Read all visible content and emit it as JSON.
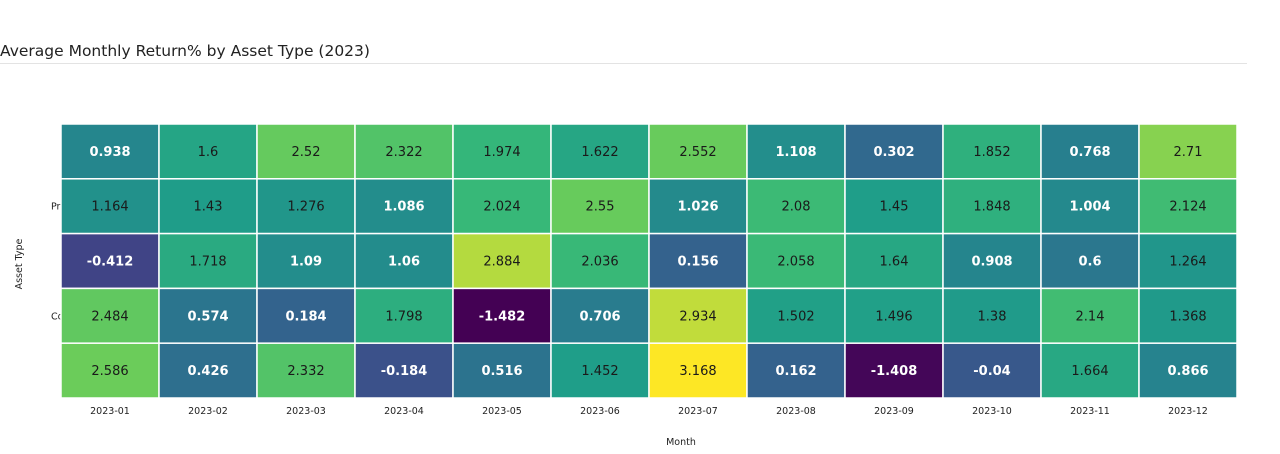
{
  "chart_data": {
    "type": "heatmap",
    "title": "Average Monthly Return% by Asset Type (2023)",
    "xlabel": "Month",
    "ylabel": "Asset Type",
    "x": [
      "2023-01",
      "2023-02",
      "2023-03",
      "2023-04",
      "2023-05",
      "2023-06",
      "2023-07",
      "2023-08",
      "2023-09",
      "2023-10",
      "2023-11",
      "2023-12"
    ],
    "y_tick_labels": [
      "",
      "Pri",
      "",
      "Co",
      ""
    ],
    "values": [
      [
        0.938,
        1.6,
        2.52,
        2.322,
        1.974,
        1.622,
        2.552,
        1.108,
        0.302,
        1.852,
        0.768,
        2.71
      ],
      [
        1.164,
        1.43,
        1.276,
        1.086,
        2.024,
        2.55,
        1.026,
        2.08,
        1.45,
        1.848,
        1.004,
        2.124
      ],
      [
        -0.412,
        1.718,
        1.09,
        1.06,
        2.884,
        2.036,
        0.156,
        2.058,
        1.64,
        0.908,
        0.6,
        1.264
      ],
      [
        2.484,
        0.574,
        0.184,
        1.798,
        -1.482,
        0.706,
        2.934,
        1.502,
        1.496,
        1.38,
        2.14,
        1.368
      ],
      [
        2.586,
        0.426,
        2.332,
        -0.184,
        0.516,
        1.452,
        3.168,
        0.162,
        -1.408,
        -0.04,
        1.664,
        0.866
      ]
    ],
    "colorscale": "viridis",
    "zmin": -1.482,
    "zmax": 3.168,
    "legend": "none",
    "grid": false
  }
}
